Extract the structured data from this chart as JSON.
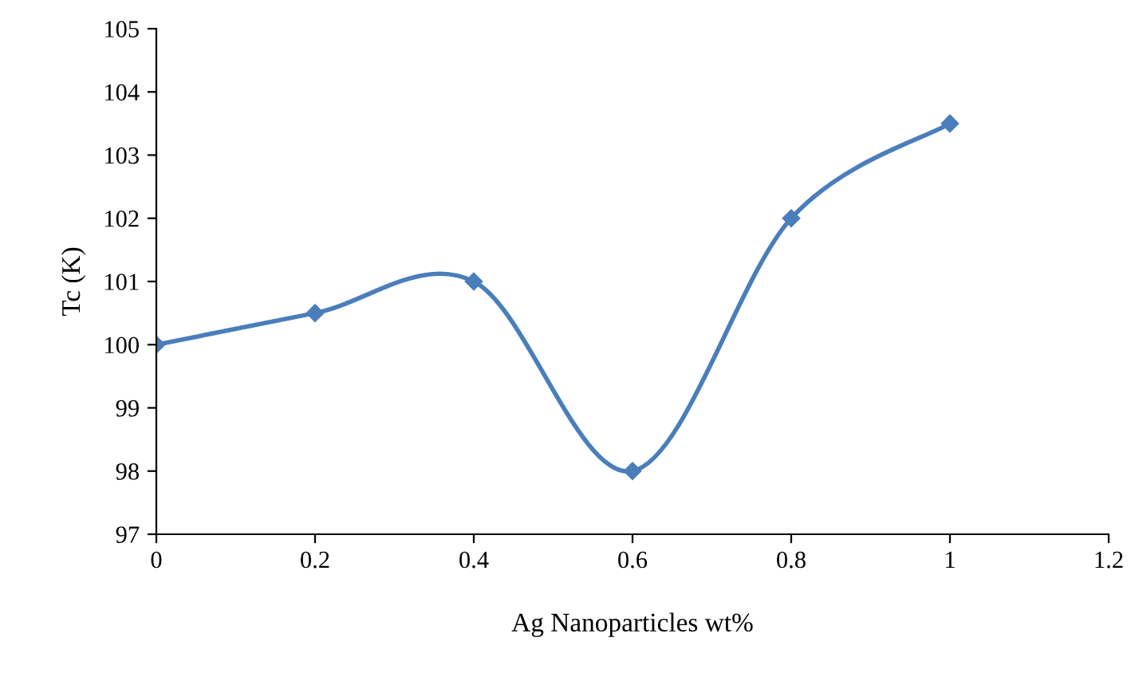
{
  "chart_data": {
    "type": "line",
    "xlabel": "Ag Nanoparticles wt%",
    "ylabel": "Tc (K)",
    "x": [
      0,
      0.2,
      0.4,
      0.6,
      0.8,
      1
    ],
    "series": [
      {
        "color": "#4a7ebb",
        "values": [
          100,
          100.5,
          101,
          98,
          102,
          103.5
        ]
      }
    ],
    "xlim": [
      0,
      1.2
    ],
    "xticks": [
      0,
      0.2,
      0.4,
      0.6,
      0.8,
      1,
      1.2
    ],
    "ylim": [
      97,
      105
    ],
    "yticks": [
      97,
      98,
      99,
      100,
      101,
      102,
      103,
      104,
      105
    ],
    "grid": false,
    "legend": false,
    "marker": "diamond",
    "line_style": "solid"
  }
}
